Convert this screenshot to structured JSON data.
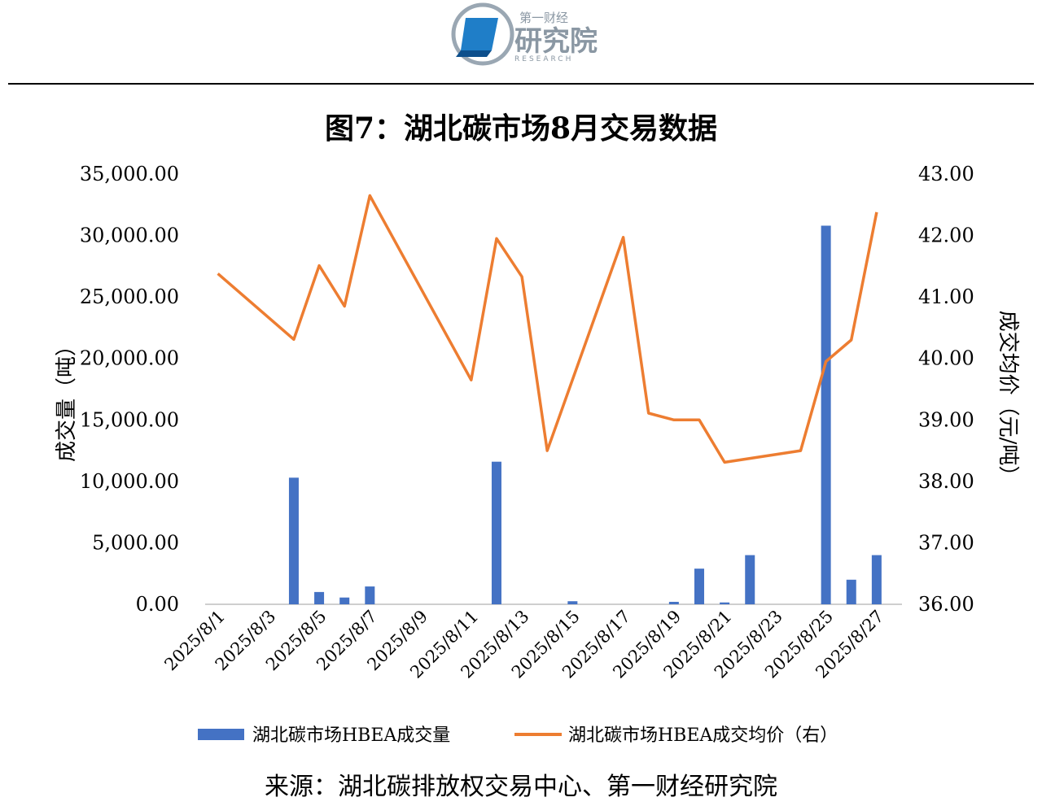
{
  "header": {
    "logo_top": "第一财经",
    "logo_main": "研究院",
    "logo_sub": "RESEARCH"
  },
  "source": "来源：湖北碳排放权交易中心、第一财经研究院",
  "colors": {
    "bar": "#4472C4",
    "line": "#ED7D31",
    "axis": "#BFBFBF"
  },
  "chart_data": {
    "type": "bar",
    "title": "图7：湖北碳市场8月交易数据",
    "ylabel": "成交量（吨）",
    "y2label": "成交均价（元/吨）",
    "ylim": [
      0,
      35000
    ],
    "y2lim": [
      36,
      43
    ],
    "yticks": [
      "0.00",
      "5,000.00",
      "10,000.00",
      "15,000.00",
      "20,000.00",
      "25,000.00",
      "30,000.00",
      "35,000.00"
    ],
    "y2ticks": [
      "36.00",
      "37.00",
      "38.00",
      "39.00",
      "40.00",
      "41.00",
      "42.00",
      "43.00"
    ],
    "categories": [
      "2025/8/1",
      "2025/8/2",
      "2025/8/3",
      "2025/8/4",
      "2025/8/5",
      "2025/8/6",
      "2025/8/7",
      "2025/8/8",
      "2025/8/9",
      "2025/8/10",
      "2025/8/11",
      "2025/8/12",
      "2025/8/13",
      "2025/8/14",
      "2025/8/15",
      "2025/8/16",
      "2025/8/17",
      "2025/8/18",
      "2025/8/19",
      "2025/8/20",
      "2025/8/21",
      "2025/8/22",
      "2025/8/23",
      "2025/8/24",
      "2025/8/25",
      "2025/8/26",
      "2025/8/27",
      "2025/8/28"
    ],
    "xtick_labels": [
      "2025/8/1",
      "2025/8/3",
      "2025/8/5",
      "2025/8/7",
      "2025/8/9",
      "2025/8/11",
      "2025/8/13",
      "2025/8/15",
      "2025/8/17",
      "2025/8/19",
      "2025/8/21",
      "2025/8/23",
      "2025/8/25",
      "2025/8/27"
    ],
    "legend_position": "bottom",
    "series": [
      {
        "name": "湖北碳市场HBEA成交量",
        "type": "bar",
        "axis": "left",
        "values": [
          0,
          0,
          0,
          10300,
          1000,
          550,
          1450,
          0,
          0,
          0,
          0,
          11600,
          0,
          0,
          250,
          0,
          0,
          0,
          200,
          2900,
          150,
          4000,
          0,
          0,
          30800,
          2000,
          4000,
          0
        ]
      },
      {
        "name": "湖北碳市场HBEA成交均价（右）",
        "type": "line",
        "axis": "right",
        "points": [
          [
            "2025/8/1",
            41.38
          ],
          [
            "2025/8/4",
            40.31
          ],
          [
            "2025/8/5",
            41.51
          ],
          [
            "2025/8/6",
            40.85
          ],
          [
            "2025/8/7",
            42.65
          ],
          [
            "2025/8/11",
            39.65
          ],
          [
            "2025/8/12",
            41.95
          ],
          [
            "2025/8/13",
            41.33
          ],
          [
            "2025/8/14",
            38.5
          ],
          [
            "2025/8/17",
            41.97
          ],
          [
            "2025/8/18",
            39.11
          ],
          [
            "2025/8/19",
            39.0
          ],
          [
            "2025/8/20",
            39.0
          ],
          [
            "2025/8/21",
            38.31
          ],
          [
            "2025/8/24",
            38.5
          ],
          [
            "2025/8/25",
            39.95
          ],
          [
            "2025/8/26",
            40.3
          ],
          [
            "2025/8/27",
            42.38
          ]
        ]
      }
    ]
  }
}
